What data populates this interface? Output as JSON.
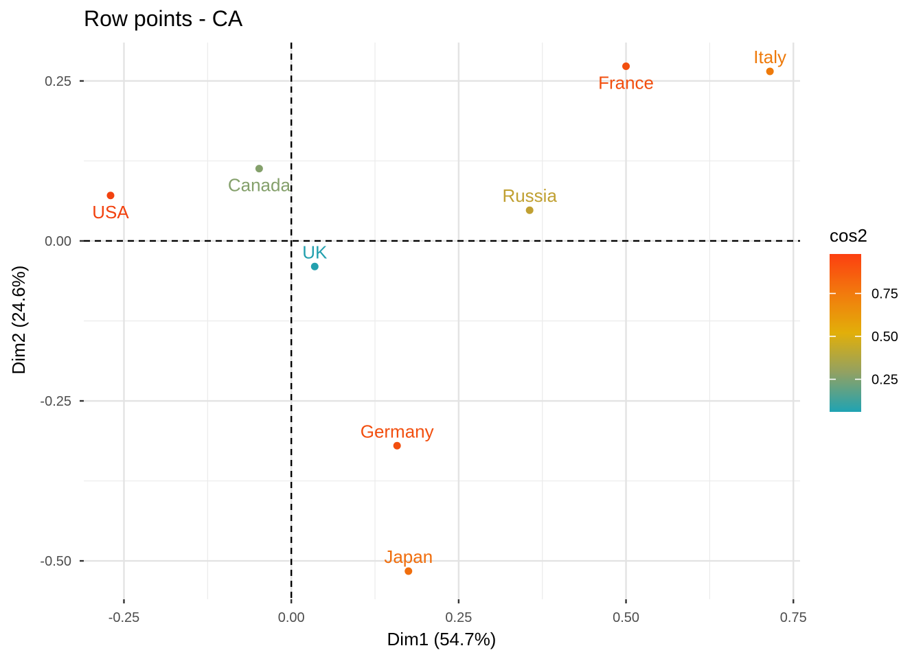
{
  "chart_data": {
    "type": "scatter",
    "title": "Row points - CA",
    "xlabel": "Dim1 (54.7%)",
    "ylabel": "Dim2 (24.6%)",
    "xlim": [
      -0.31,
      0.76
    ],
    "ylim": [
      -0.56,
      0.31
    ],
    "x_ticks": [
      -0.25,
      0.0,
      0.25,
      0.5,
      0.75
    ],
    "x_tick_labels": [
      "-0.25",
      "0.00",
      "0.25",
      "0.50",
      "0.75"
    ],
    "y_ticks": [
      0.25,
      0.0,
      -0.25,
      -0.5
    ],
    "y_tick_labels": [
      "0.25",
      "0.00",
      "-0.25",
      "-0.50"
    ],
    "x_minor_ticks": [
      -0.125,
      0.125,
      0.375,
      0.625
    ],
    "y_minor_ticks": [
      0.125,
      -0.125,
      -0.375
    ],
    "reference_lines": {
      "x": 0.0,
      "y": 0.0
    },
    "grid": true,
    "points": [
      {
        "label": "France",
        "x": 0.5,
        "y": 0.273,
        "cos2": 0.95,
        "color": "#F24F0F",
        "label_side": "below"
      },
      {
        "label": "Italy",
        "x": 0.715,
        "y": 0.265,
        "cos2": 0.82,
        "color": "#EE7A0B",
        "label_side": "above"
      },
      {
        "label": "Canada",
        "x": -0.048,
        "y": 0.113,
        "cos2": 0.32,
        "color": "#84A06B",
        "label_side": "below"
      },
      {
        "label": "USA",
        "x": -0.27,
        "y": 0.071,
        "cos2": 0.97,
        "color": "#F2420F",
        "label_side": "below"
      },
      {
        "label": "Russia",
        "x": 0.356,
        "y": 0.048,
        "cos2": 0.45,
        "color": "#C0A032",
        "label_side": "above"
      },
      {
        "label": "UK",
        "x": 0.035,
        "y": -0.04,
        "cos2": 0.12,
        "color": "#23A0AE",
        "label_side": "above"
      },
      {
        "label": "Germany",
        "x": 0.158,
        "y": -0.32,
        "cos2": 0.95,
        "color": "#F24F0F",
        "label_side": "above"
      },
      {
        "label": "Japan",
        "x": 0.175,
        "y": -0.516,
        "cos2": 0.85,
        "color": "#F06E0D",
        "label_side": "above"
      }
    ],
    "legend": {
      "title": "cos2",
      "position": "right",
      "range": [
        0.06,
        0.98
      ],
      "ticks": [
        0.75,
        0.5,
        0.25
      ],
      "tick_labels": [
        "0.75",
        "0.50",
        "0.25"
      ],
      "gradient_colors": [
        "#1FA3B3",
        "#92A162",
        "#E2AF09",
        "#F27A0D",
        "#FC3F10"
      ]
    }
  }
}
